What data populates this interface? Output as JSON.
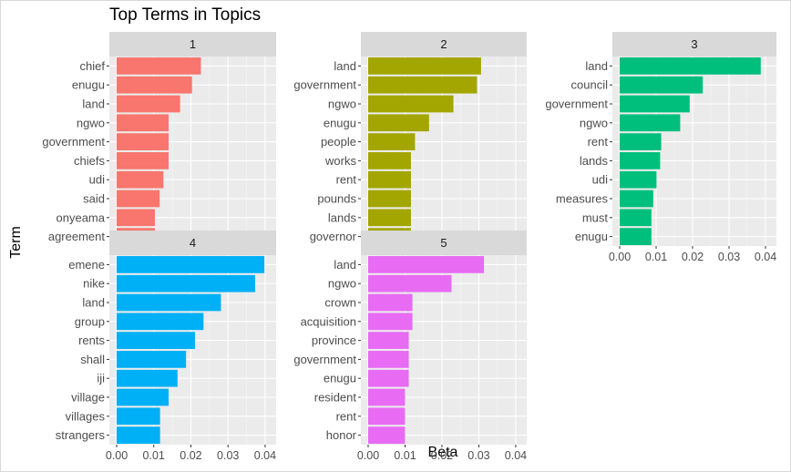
{
  "chart_data": {
    "type": "bar",
    "orientation": "horizontal",
    "title": "Top Terms in Topics",
    "xlabel": "Beta",
    "ylabel": "Term",
    "xlim": [
      0,
      0.041
    ],
    "xticks": [
      "0.00",
      "0.01",
      "0.02",
      "0.03",
      "0.04"
    ],
    "xtick_values": [
      0,
      0.01,
      0.02,
      0.03,
      0.04
    ],
    "grid": true,
    "panels": [
      {
        "label": "1",
        "color": "#F8766D",
        "terms": [
          "chief",
          "enugu",
          "land",
          "ngwo",
          "government",
          "chiefs",
          "udi",
          "said",
          "onyeama",
          "agreement"
        ],
        "values": [
          0.0227,
          0.0203,
          0.0171,
          0.014,
          0.014,
          0.014,
          0.0126,
          0.0116,
          0.0103,
          0.0103
        ]
      },
      {
        "label": "2",
        "color": "#A3A500",
        "terms": [
          "land",
          "government",
          "ngwo",
          "enugu",
          "people",
          "works",
          "rent",
          "pounds",
          "lands",
          "governor"
        ],
        "values": [
          0.0306,
          0.0295,
          0.0231,
          0.0165,
          0.0127,
          0.0116,
          0.0116,
          0.0116,
          0.0116,
          0.0116
        ]
      },
      {
        "label": "3",
        "color": "#00BF7D",
        "terms": [
          "land",
          "council",
          "government",
          "ngwo",
          "rent",
          "lands",
          "udi",
          "measures",
          "must",
          "enugu"
        ],
        "values": [
          0.0387,
          0.0228,
          0.0192,
          0.0166,
          0.0114,
          0.0111,
          0.0101,
          0.0092,
          0.0087,
          0.0087
        ]
      },
      {
        "label": "4",
        "color": "#00B0F6",
        "terms": [
          "emene",
          "nike",
          "land",
          "group",
          "rents",
          "shall",
          "iji",
          "village",
          "villages",
          "strangers"
        ],
        "values": [
          0.0398,
          0.0373,
          0.0281,
          0.0234,
          0.0211,
          0.0187,
          0.0164,
          0.014,
          0.0117,
          0.0117
        ]
      },
      {
        "label": "5",
        "color": "#E76BF3",
        "terms": [
          "land",
          "ngwo",
          "crown",
          "acquisition",
          "province",
          "government",
          "enugu",
          "resident",
          "rent",
          "honor"
        ],
        "values": [
          0.0314,
          0.0226,
          0.012,
          0.012,
          0.011,
          0.011,
          0.011,
          0.01,
          0.01,
          0.01
        ]
      }
    ]
  }
}
